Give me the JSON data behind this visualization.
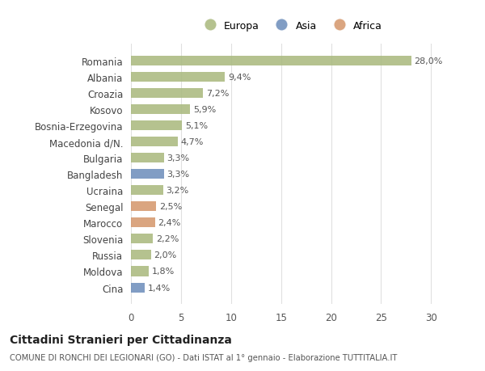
{
  "countries": [
    "Romania",
    "Albania",
    "Croazia",
    "Kosovo",
    "Bosnia-Erzegovina",
    "Macedonia d/N.",
    "Bulgaria",
    "Bangladesh",
    "Ucraina",
    "Senegal",
    "Marocco",
    "Slovenia",
    "Russia",
    "Moldova",
    "Cina"
  ],
  "values": [
    28.0,
    9.4,
    7.2,
    5.9,
    5.1,
    4.7,
    3.3,
    3.3,
    3.2,
    2.5,
    2.4,
    2.2,
    2.0,
    1.8,
    1.4
  ],
  "labels": [
    "28,0%",
    "9,4%",
    "7,2%",
    "5,9%",
    "5,1%",
    "4,7%",
    "3,3%",
    "3,3%",
    "3,2%",
    "2,5%",
    "2,4%",
    "2,2%",
    "2,0%",
    "1,8%",
    "1,4%"
  ],
  "continents": [
    "Europa",
    "Europa",
    "Europa",
    "Europa",
    "Europa",
    "Europa",
    "Europa",
    "Asia",
    "Europa",
    "Africa",
    "Africa",
    "Europa",
    "Europa",
    "Europa",
    "Asia"
  ],
  "colors": {
    "Europa": "#a8b87c",
    "Asia": "#6b8cba",
    "Africa": "#d4956a"
  },
  "legend_order": [
    "Europa",
    "Asia",
    "Africa"
  ],
  "title": "Cittadini Stranieri per Cittadinanza",
  "subtitle": "COMUNE DI RONCHI DEI LEGIONARI (GO) - Dati ISTAT al 1° gennaio - Elaborazione TUTTITALIA.IT",
  "xlim": [
    0,
    32
  ],
  "xticks": [
    0,
    5,
    10,
    15,
    20,
    25,
    30
  ],
  "background_color": "#ffffff",
  "grid_color": "#e0e0e0"
}
